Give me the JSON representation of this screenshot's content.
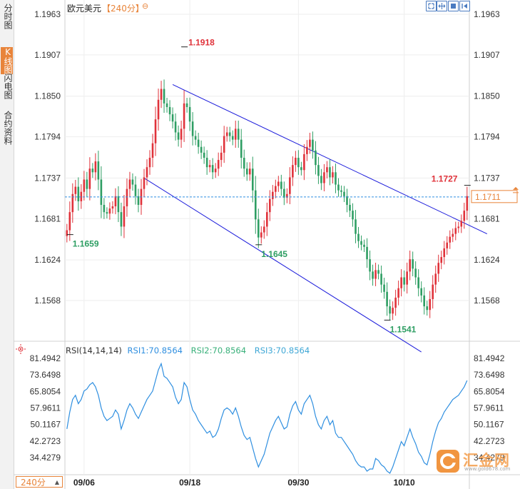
{
  "sidebar": {
    "tabs": [
      {
        "label": "分时图",
        "active": false
      },
      {
        "label": "K线图",
        "active": true
      },
      {
        "label": "闪电图",
        "active": false
      },
      {
        "label": "合约资料",
        "active": false
      }
    ]
  },
  "header": {
    "title": "欧元美元",
    "period": "【240分】"
  },
  "toolbar": {
    "icons": [
      "fit-icon",
      "zoom-in-icon",
      "zoom-out-icon",
      "scroll-end-icon"
    ]
  },
  "period_selector": {
    "value": "240分"
  },
  "rsi_header": {
    "label": "RSI(14,14,14)",
    "rsi1": "RSI1:70.8564",
    "rsi2": "RSI2:70.8564",
    "rsi3": "RSI3:70.8564"
  },
  "watermark": {
    "text": "汇金网",
    "sub": "www.gold678.com"
  },
  "colors": {
    "up": "#e0323a",
    "down": "#2e9e63",
    "channel": "#1a1adb",
    "rsi": "#2f8fe0",
    "accent": "#e8843a",
    "price_line": "#2f8fe0"
  },
  "chart_data": [
    {
      "type": "candlestick",
      "series_name": "欧元美元",
      "y_ticks": [
        "1.1963",
        "1.1907",
        "1.1850",
        "1.1794",
        "1.1737",
        "1.1681",
        "1.1624",
        "1.1568"
      ],
      "ylim": [
        1.151,
        1.198
      ],
      "x_ticks": [
        {
          "label": "09/06",
          "index": 6
        },
        {
          "label": "09/18",
          "index": 43
        },
        {
          "label": "09/30",
          "index": 81
        },
        {
          "label": "10/10",
          "index": 118
        }
      ],
      "current_price": "1.1711",
      "annotations": [
        {
          "text": "1.1918",
          "index": 41,
          "value": 1.1918,
          "kind": "high"
        },
        {
          "text": "1.1659",
          "index": 1,
          "value": 1.1659,
          "kind": "low"
        },
        {
          "text": "1.1645",
          "index": 67,
          "value": 1.1645,
          "kind": "low"
        },
        {
          "text": "1.1541",
          "index": 112,
          "value": 1.1541,
          "kind": "low"
        },
        {
          "text": "1.1727",
          "index": 140,
          "value": 1.1727,
          "kind": "high"
        }
      ],
      "channel": {
        "upper": [
          [
            37,
            1.1866
          ],
          [
            147,
            1.166
          ]
        ],
        "lower": [
          [
            27,
            1.1737
          ],
          [
            124,
            1.1497
          ]
        ]
      },
      "closes": [
        1.1665,
        1.169,
        1.1715,
        1.1725,
        1.1705,
        1.1718,
        1.1735,
        1.1722,
        1.175,
        1.1745,
        1.176,
        1.1735,
        1.17,
        1.169,
        1.1688,
        1.1695,
        1.1698,
        1.1712,
        1.169,
        1.167,
        1.1698,
        1.1722,
        1.1735,
        1.1728,
        1.1712,
        1.17,
        1.1722,
        1.1738,
        1.1752,
        1.1765,
        1.1785,
        1.1818,
        1.1845,
        1.186,
        1.184,
        1.1835,
        1.1825,
        1.1815,
        1.18,
        1.179,
        1.1805,
        1.184,
        1.1835,
        1.1815,
        1.1795,
        1.179,
        1.178,
        1.1772,
        1.1765,
        1.1752,
        1.1755,
        1.1745,
        1.175,
        1.1762,
        1.1772,
        1.1795,
        1.18,
        1.1795,
        1.179,
        1.1805,
        1.179,
        1.1765,
        1.175,
        1.1742,
        1.175,
        1.172,
        1.168,
        1.1655,
        1.1662,
        1.167,
        1.169,
        1.1708,
        1.1718,
        1.1726,
        1.1732,
        1.1722,
        1.171,
        1.1715,
        1.1738,
        1.1755,
        1.1765,
        1.1752,
        1.1748,
        1.177,
        1.178,
        1.179,
        1.1775,
        1.1755,
        1.174,
        1.173,
        1.1745,
        1.1752,
        1.1738,
        1.1745,
        1.1728,
        1.172,
        1.1718,
        1.1712,
        1.17,
        1.1692,
        1.168,
        1.166,
        1.165,
        1.1645,
        1.1642,
        1.1625,
        1.1608,
        1.1598,
        1.161,
        1.1605,
        1.159,
        1.158,
        1.156,
        1.155,
        1.1558,
        1.1572,
        1.1585,
        1.16,
        1.159,
        1.1608,
        1.1625,
        1.1612,
        1.16,
        1.1585,
        1.1575,
        1.156,
        1.1555,
        1.157,
        1.159,
        1.1605,
        1.162,
        1.1628,
        1.164,
        1.1648,
        1.1656,
        1.166,
        1.1668,
        1.167,
        1.1678,
        1.1692,
        1.1712
      ],
      "legend": "none"
    },
    {
      "type": "line",
      "series": [
        {
          "name": "RSI1",
          "color": "#2f8fe0"
        }
      ],
      "y_ticks": [
        "81.4942",
        "73.6498",
        "65.8054",
        "57.9611",
        "50.1167",
        "42.2723",
        "34.4279"
      ],
      "ylim": [
        27.0,
        85.0
      ],
      "values": [
        48,
        56,
        62,
        64,
        60,
        62,
        66,
        67,
        69,
        70,
        68,
        64,
        58,
        54,
        52,
        53,
        54,
        57,
        55,
        48,
        52,
        57,
        60,
        58,
        55,
        53,
        56,
        59,
        62,
        64,
        66,
        71,
        76,
        79,
        73,
        72,
        70,
        68,
        63,
        60,
        62,
        70,
        68,
        62,
        57,
        55,
        52,
        50,
        48,
        46,
        47,
        44,
        45,
        48,
        53,
        57,
        58,
        57,
        55,
        58,
        54,
        49,
        45,
        43,
        44,
        39,
        34,
        30,
        33,
        36,
        41,
        46,
        49,
        52,
        54,
        51,
        48,
        49,
        55,
        59,
        61,
        57,
        55,
        60,
        62,
        64,
        60,
        54,
        50,
        48,
        52,
        54,
        50,
        52,
        46,
        44,
        44,
        42,
        40,
        38,
        36,
        33,
        31,
        30,
        30,
        28,
        29,
        29,
        34,
        33,
        31,
        30,
        28,
        27,
        30,
        34,
        38,
        42,
        40,
        44,
        48,
        44,
        41,
        37,
        35,
        32,
        31,
        36,
        42,
        47,
        51,
        53,
        56,
        58,
        60,
        62,
        63,
        64,
        66,
        68,
        71
      ],
      "legend": "none"
    }
  ]
}
